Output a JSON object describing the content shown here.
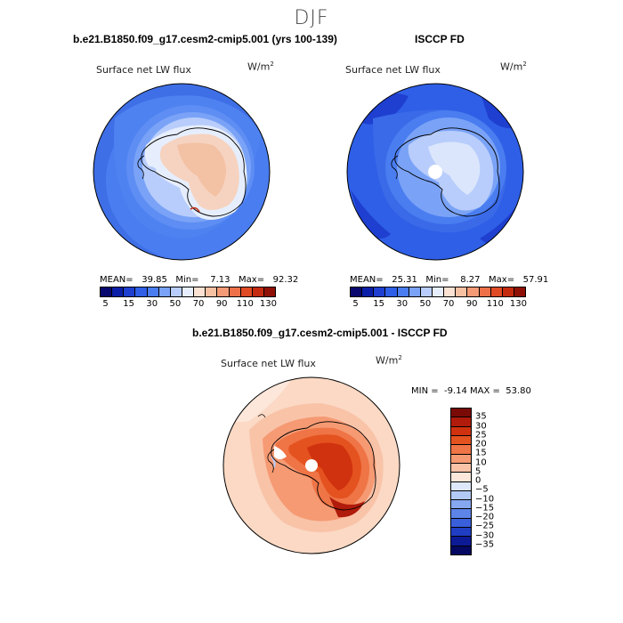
{
  "season": "DJF",
  "panels": {
    "model": {
      "title": "b.e21.B1850.f09_g17.cesm2-cmip5.001 (yrs 100-139)",
      "subtitle": "Surface net LW flux",
      "units": "W/m",
      "units_exp": "2",
      "mean_label": "MEAN=",
      "mean": "39.85",
      "min_label": "Min=",
      "min": "7.13",
      "max_label": "Max=",
      "max": "92.32"
    },
    "obs": {
      "title": "ISCCP FD",
      "subtitle": "Surface net LW flux",
      "units": "W/m",
      "units_exp": "2",
      "mean_label": "MEAN=",
      "mean": "25.31",
      "min_label": "Min=",
      "min": "8.27",
      "max_label": "Max=",
      "max": "57.91"
    },
    "diff": {
      "title": "b.e21.B1850.f09_g17.cesm2-cmip5.001 - ISCCP FD",
      "subtitle": "Surface net LW flux",
      "units": "W/m",
      "units_exp": "2",
      "minmax_text": "MIN =  -9.14 MAX =  53.80"
    }
  },
  "chart_data": [
    {
      "type": "heatmap",
      "title": "b.e21.B1850.f09_g17.cesm2-cmip5.001 (yrs 100-139)",
      "variable": "Surface net LW flux",
      "units": "W/m2",
      "projection": "south polar stereographic",
      "mean": 39.85,
      "min": 7.13,
      "max": 92.32,
      "colorbar_levels": [
        5,
        10,
        15,
        20,
        30,
        40,
        50,
        60,
        70,
        80,
        90,
        100,
        110,
        120,
        130
      ],
      "colorbar_tick_labels": [
        "5",
        "15",
        "30",
        "50",
        "70",
        "90",
        "110",
        "130"
      ]
    },
    {
      "type": "heatmap",
      "title": "ISCCP FD",
      "variable": "Surface net LW flux",
      "units": "W/m2",
      "projection": "south polar stereographic",
      "mean": 25.31,
      "min": 8.27,
      "max": 57.91,
      "colorbar_levels": [
        5,
        10,
        15,
        20,
        30,
        40,
        50,
        60,
        70,
        80,
        90,
        100,
        110,
        120,
        130
      ],
      "colorbar_tick_labels": [
        "5",
        "15",
        "30",
        "50",
        "70",
        "90",
        "110",
        "130"
      ]
    },
    {
      "type": "heatmap",
      "title": "b.e21.B1850.f09_g17.cesm2-cmip5.001 - ISCCP FD",
      "variable": "Surface net LW flux",
      "units": "W/m2",
      "projection": "south polar stereographic",
      "min": -9.14,
      "max": 53.8,
      "colorbar_levels": [
        35,
        30,
        25,
        20,
        15,
        10,
        5,
        0,
        -5,
        -10,
        -15,
        -20,
        -25,
        -30,
        -35
      ],
      "colorbar_tick_labels": [
        "35",
        "30",
        "25",
        "20",
        "15",
        "10",
        "5",
        "0",
        "−5",
        "−10",
        "−15",
        "−20",
        "−25",
        "−30",
        "−35"
      ]
    }
  ],
  "colors": {
    "seq": [
      "#08086e",
      "#0b1ea8",
      "#1e3fd0",
      "#2f5fe6",
      "#4a7df0",
      "#7aa3f7",
      "#b8cdfb",
      "#e6eefd",
      "#fbe2d2",
      "#f6c0a3",
      "#f49a76",
      "#ee7048",
      "#e04a25",
      "#c42a0f",
      "#8f1006"
    ],
    "div": [
      "#7a0a06",
      "#b01b0b",
      "#d0320f",
      "#e4521f",
      "#ef7446",
      "#f59a73",
      "#f9c3a8",
      "#fce7da",
      "#dde8fb",
      "#b2c9f6",
      "#86a8f0",
      "#5d84e8",
      "#3a5fdb",
      "#1f3ec4",
      "#0c1a96",
      "#050862"
    ]
  }
}
